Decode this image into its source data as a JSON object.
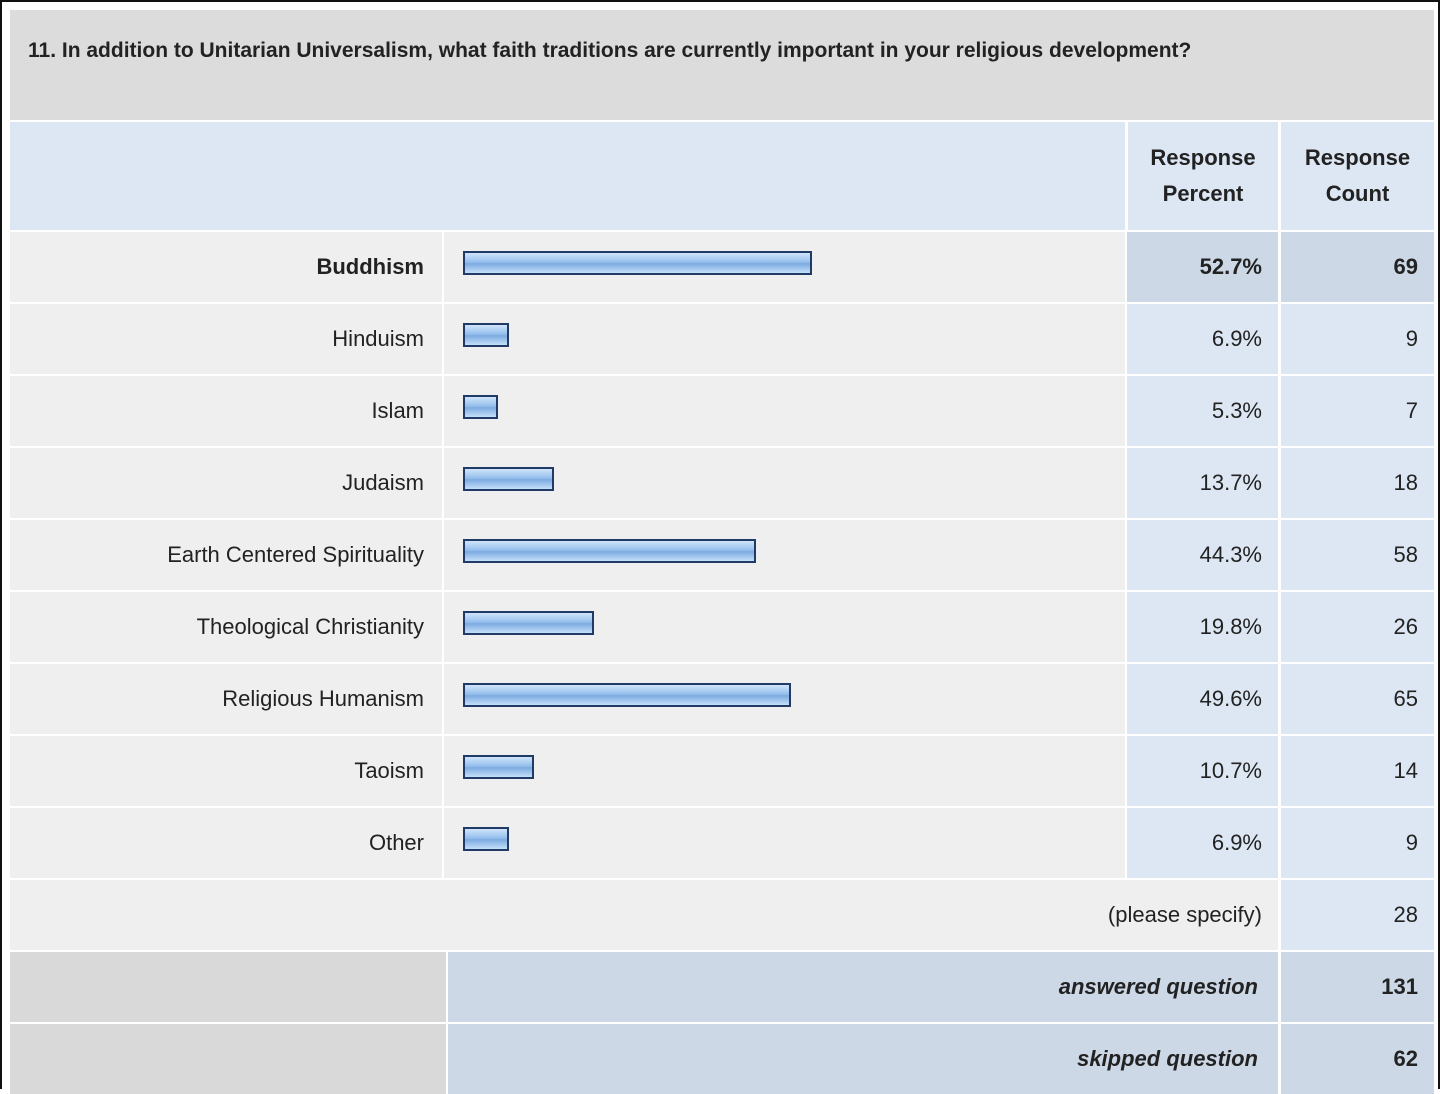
{
  "question": {
    "title": "11. In addition to Unitarian Universalism, what faith traditions are currently important in your religious development?"
  },
  "header": {
    "percent_label": "Response Percent",
    "count_label": "Response Count"
  },
  "chart_data": {
    "type": "bar",
    "orientation": "horizontal",
    "categories": [
      "Buddhism",
      "Hinduism",
      "Islam",
      "Judaism",
      "Earth Centered Spirituality",
      "Theological Christianity",
      "Religious Humanism",
      "Taoism",
      "Other"
    ],
    "series": [
      {
        "values": [
          52.7,
          6.9,
          5.3,
          13.7,
          44.3,
          19.8,
          49.6,
          10.7,
          6.9
        ]
      }
    ],
    "percent_labels": [
      "52.7%",
      "6.9%",
      "5.3%",
      "13.7%",
      "44.3%",
      "19.8%",
      "49.6%",
      "10.7%",
      "6.9%"
    ],
    "counts": [
      "69",
      "9",
      "7",
      "18",
      "58",
      "26",
      "65",
      "14",
      "9"
    ],
    "highlighted_category": "Buddhism",
    "xlim": [
      0,
      100
    ],
    "title": "",
    "xlabel": "",
    "ylabel": "",
    "bar_color": "#8db9e8",
    "bar_border_color": "#1f3b66"
  },
  "specify": {
    "label": "(please specify)",
    "count": "28"
  },
  "summary": {
    "answered_label": "answered question",
    "answered_count": "131",
    "skipped_label": "skipped question",
    "skipped_count": "62"
  }
}
